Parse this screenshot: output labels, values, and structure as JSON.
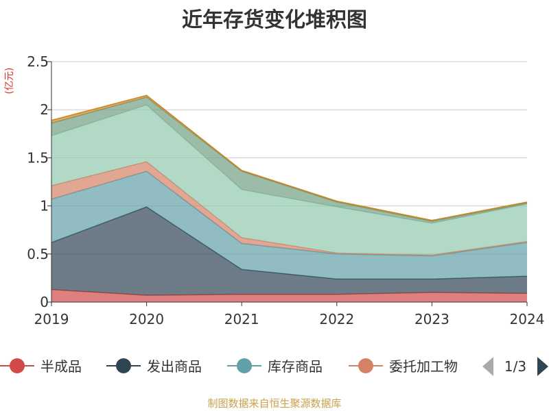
{
  "title": "近年存货变化堆积图",
  "source": "制图数据来自恒生聚源数据库",
  "legend_page": "1/3",
  "chart_data": {
    "type": "area",
    "stacked": true,
    "x": [
      "2019",
      "2020",
      "2021",
      "2022",
      "2023",
      "2024"
    ],
    "ylabel": "(亿元)",
    "ylim": [
      0,
      2.5
    ],
    "yticks": [
      0,
      0.5,
      1,
      1.5,
      2,
      2.5
    ],
    "ytick_labels": [
      "0",
      "0.5",
      "1",
      "1.5",
      "2",
      "2.5"
    ],
    "grid": true,
    "legend_position": "bottom",
    "series": [
      {
        "name": "半成品",
        "color": "#d14a47",
        "values": [
          0.13,
          0.07,
          0.08,
          0.08,
          0.1,
          0.09
        ]
      },
      {
        "name": "发出商品",
        "color": "#2f4554",
        "values": [
          0.49,
          0.92,
          0.26,
          0.16,
          0.14,
          0.18
        ]
      },
      {
        "name": "库存商品",
        "color": "#61a0a8",
        "values": [
          0.45,
          0.37,
          0.27,
          0.26,
          0.24,
          0.35
        ]
      },
      {
        "name": "委托加工物",
        "color": "#d48265",
        "values": [
          0.14,
          0.1,
          0.06,
          0.01,
          0.01,
          0.01
        ]
      },
      {
        "name": "",
        "color": "#91c7ae",
        "values": [
          0.52,
          0.59,
          0.5,
          0.48,
          0.33,
          0.39
        ]
      },
      {
        "name": "",
        "color": "#749f83",
        "values": [
          0.13,
          0.08,
          0.19,
          0.05,
          0.02,
          0.01
        ]
      },
      {
        "name": "",
        "color": "#ca8622",
        "values": [
          0.03,
          0.02,
          0.01,
          0.01,
          0.01,
          0.01
        ]
      }
    ]
  }
}
